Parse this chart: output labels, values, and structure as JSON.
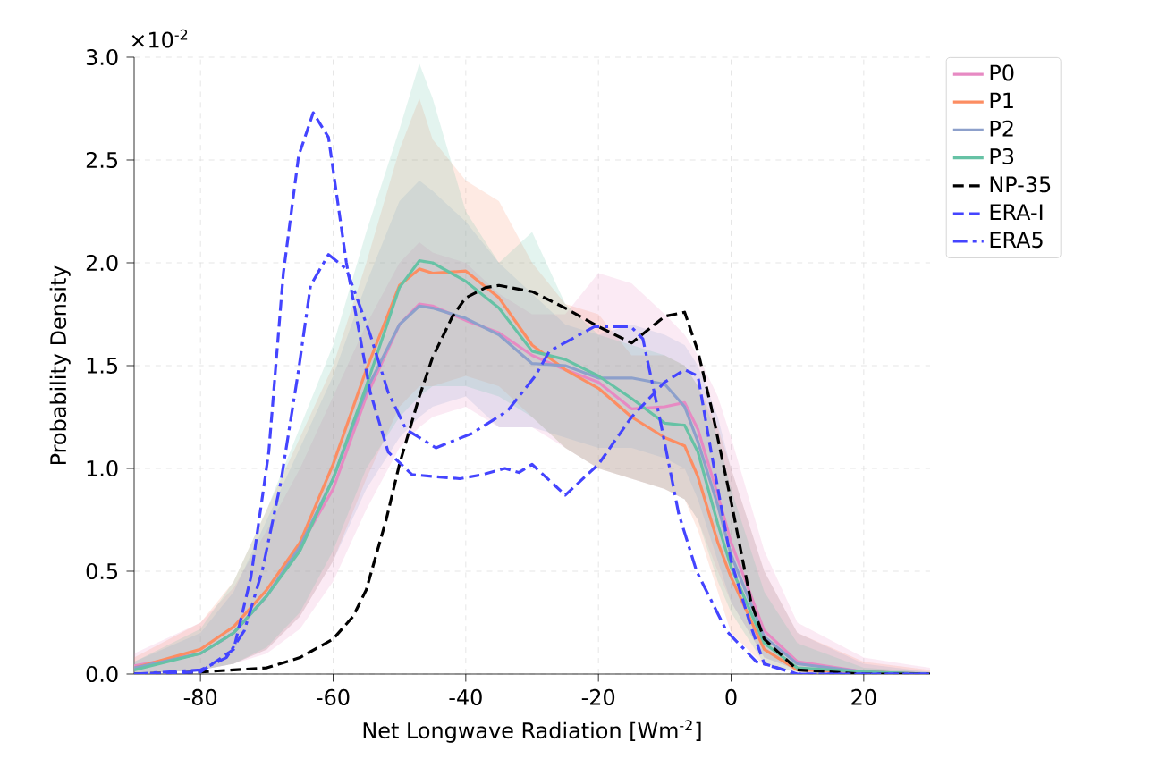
{
  "chart_data": {
    "type": "line",
    "xlabel": "Net Longwave Radiation [Wm$^{-2}$]",
    "ylabel": "Probability Density",
    "annotations": [
      "×10$^{-2}$"
    ],
    "xlim": [
      -90,
      30
    ],
    "ylim": [
      0,
      3.0
    ],
    "xticks": [
      -80,
      -60,
      -40,
      -20,
      0,
      20
    ],
    "yticks": [
      {
        "value": 0,
        "label": "0.0"
      },
      {
        "value": 0.5,
        "label": "0.5"
      },
      {
        "value": 1.0,
        "label": "1.0"
      },
      {
        "value": 1.5,
        "label": "1.5"
      },
      {
        "value": 2.0,
        "label": "2.0"
      },
      {
        "value": 2.5,
        "label": "2.5"
      },
      {
        "value": 3.0,
        "label": "3.0"
      }
    ],
    "grid": true,
    "legend": "top right",
    "series": [
      {
        "name": "P0",
        "color": "#e78ac3",
        "line_style": "solid",
        "x": [
          -90,
          -80,
          -75,
          -70,
          -65,
          -60,
          -55,
          -50,
          -47,
          -45,
          -40,
          -35,
          -30,
          -25,
          -20,
          -15,
          -10,
          -7,
          -5,
          -2,
          0,
          5,
          10,
          20,
          30
        ],
        "values": [
          0.04,
          0.1,
          0.2,
          0.38,
          0.62,
          0.9,
          1.35,
          1.7,
          1.8,
          1.79,
          1.72,
          1.66,
          1.55,
          1.48,
          1.42,
          1.29,
          1.3,
          1.32,
          1.19,
          0.87,
          0.64,
          0.21,
          0.06,
          0.01,
          0
        ],
        "upper": [
          0.1,
          0.25,
          0.42,
          0.7,
          1.0,
          1.35,
          1.7,
          2.0,
          2.1,
          2.05,
          2.0,
          1.85,
          1.75,
          1.75,
          1.95,
          1.9,
          1.75,
          1.65,
          1.55,
          1.35,
          1.15,
          0.6,
          0.25,
          0.08,
          0.03
        ],
        "lower": [
          0,
          0.02,
          0.05,
          0.1,
          0.22,
          0.45,
          0.8,
          1.1,
          1.2,
          1.25,
          1.3,
          1.2,
          1.2,
          1.1,
          1.0,
          0.95,
          0.9,
          0.85,
          0.75,
          0.5,
          0.35,
          0.08,
          0.02,
          0,
          0
        ]
      },
      {
        "name": "P1",
        "color": "#fc8d62",
        "line_style": "solid",
        "x": [
          -90,
          -80,
          -75,
          -70,
          -65,
          -60,
          -55,
          -50,
          -47,
          -45,
          -40,
          -35,
          -30,
          -25,
          -20,
          -15,
          -10,
          -7,
          -5,
          -2,
          0,
          5,
          10,
          20,
          30
        ],
        "values": [
          0.03,
          0.12,
          0.23,
          0.41,
          0.64,
          1.02,
          1.48,
          1.89,
          1.97,
          1.95,
          1.96,
          1.83,
          1.6,
          1.48,
          1.39,
          1.25,
          1.15,
          1.11,
          0.96,
          0.64,
          0.47,
          0.12,
          0.02,
          0.01,
          0
        ],
        "upper": [
          0.08,
          0.25,
          0.45,
          0.8,
          1.15,
          1.5,
          2.0,
          2.55,
          2.8,
          2.6,
          2.4,
          2.3,
          2.0,
          1.8,
          1.75,
          1.55,
          1.55,
          1.5,
          1.4,
          1.2,
          1.0,
          0.5,
          0.2,
          0.06,
          0.02
        ],
        "lower": [
          0,
          0.02,
          0.05,
          0.12,
          0.28,
          0.55,
          0.95,
          1.3,
          1.4,
          1.4,
          1.45,
          1.4,
          1.25,
          1.1,
          1.0,
          0.95,
          0.9,
          0.85,
          0.7,
          0.4,
          0.2,
          0.04,
          0.01,
          0,
          0
        ]
      },
      {
        "name": "P2",
        "color": "#8da0cb",
        "line_style": "solid",
        "x": [
          -90,
          -80,
          -75,
          -70,
          -65,
          -60,
          -55,
          -50,
          -47,
          -45,
          -40,
          -35,
          -30,
          -25,
          -20,
          -15,
          -10,
          -7,
          -5,
          -2,
          0,
          5,
          10,
          20,
          30
        ],
        "values": [
          0.03,
          0.1,
          0.2,
          0.38,
          0.62,
          0.95,
          1.38,
          1.7,
          1.79,
          1.78,
          1.73,
          1.65,
          1.51,
          1.5,
          1.44,
          1.44,
          1.41,
          1.3,
          1.13,
          0.82,
          0.58,
          0.18,
          0.05,
          0.01,
          0
        ],
        "upper": [
          0.06,
          0.2,
          0.4,
          0.75,
          1.1,
          1.45,
          1.9,
          2.3,
          2.4,
          2.35,
          2.2,
          2.0,
          1.85,
          1.7,
          1.65,
          1.7,
          1.65,
          1.6,
          1.5,
          1.25,
          1.0,
          0.5,
          0.2,
          0.05,
          0.01
        ],
        "lower": [
          0,
          0.02,
          0.05,
          0.12,
          0.28,
          0.55,
          0.9,
          1.15,
          1.25,
          1.3,
          1.35,
          1.2,
          1.2,
          1.15,
          1.1,
          1.1,
          1.05,
          1.0,
          0.85,
          0.55,
          0.35,
          0.08,
          0.02,
          0,
          0
        ]
      },
      {
        "name": "P3",
        "color": "#66c2a5",
        "line_style": "solid",
        "x": [
          -90,
          -80,
          -75,
          -70,
          -65,
          -60,
          -55,
          -50,
          -47,
          -45,
          -40,
          -35,
          -30,
          -25,
          -20,
          -15,
          -10,
          -7,
          -5,
          -2,
          0,
          5,
          10,
          20,
          30
        ],
        "values": [
          0.02,
          0.1,
          0.2,
          0.38,
          0.6,
          0.95,
          1.4,
          1.88,
          2.01,
          2.0,
          1.91,
          1.78,
          1.57,
          1.53,
          1.45,
          1.34,
          1.22,
          1.21,
          1.08,
          0.73,
          0.52,
          0.15,
          0.03,
          0.01,
          0
        ],
        "upper": [
          0.06,
          0.22,
          0.45,
          0.8,
          1.2,
          1.6,
          2.15,
          2.65,
          2.97,
          2.8,
          2.25,
          2.0,
          2.15,
          1.8,
          1.65,
          1.6,
          1.55,
          1.5,
          1.4,
          1.15,
          0.9,
          0.4,
          0.15,
          0.03,
          0.01
        ],
        "lower": [
          0,
          0.02,
          0.05,
          0.13,
          0.3,
          0.6,
          1.0,
          1.25,
          1.35,
          1.4,
          1.4,
          1.35,
          1.25,
          1.1,
          1.0,
          0.95,
          0.9,
          0.85,
          0.75,
          0.45,
          0.3,
          0.05,
          0.01,
          0,
          0
        ]
      },
      {
        "name": "NP-35",
        "color": "#000000",
        "line_style": "dashed",
        "x": [
          -90,
          -80,
          -75,
          -70,
          -65,
          -60,
          -57,
          -55,
          -52,
          -50,
          -47,
          -45,
          -42,
          -40,
          -37,
          -35,
          -30,
          -25,
          -20,
          -15,
          -10,
          -7,
          -5,
          -3,
          0,
          3,
          5,
          10,
          20,
          30
        ],
        "values": [
          0,
          0.01,
          0.02,
          0.03,
          0.08,
          0.17,
          0.28,
          0.41,
          0.75,
          1.02,
          1.35,
          1.54,
          1.74,
          1.83,
          1.88,
          1.89,
          1.86,
          1.78,
          1.69,
          1.61,
          1.74,
          1.76,
          1.57,
          1.3,
          0.84,
          0.35,
          0.17,
          0.02,
          0,
          0
        ]
      },
      {
        "name": "ERA-I",
        "color": "#4444ff",
        "line_style": "dashed",
        "x": [
          -90,
          -80,
          -75,
          -72.4,
          -69.7,
          -67.5,
          -65.2,
          -63,
          -60.7,
          -58,
          -54.4,
          -51.7,
          -48.1,
          -40.9,
          -37.5,
          -34.1,
          -32,
          -30,
          -25,
          -20,
          -15,
          -10,
          -7,
          -5,
          -3,
          0,
          3,
          5,
          10,
          20,
          30
        ],
        "values": [
          0,
          0.01,
          0.12,
          0.47,
          1.08,
          1.95,
          2.52,
          2.73,
          2.61,
          2.0,
          1.37,
          1.08,
          0.97,
          0.95,
          0.97,
          1.0,
          0.98,
          1.02,
          0.87,
          1.02,
          1.25,
          1.42,
          1.48,
          1.45,
          1.08,
          0.55,
          0.23,
          0.05,
          0,
          0,
          0
        ]
      },
      {
        "name": "ERA5",
        "color": "#4444ff",
        "line_style": "dashdot",
        "x": [
          -90,
          -80,
          -76.1,
          -73.4,
          -70.7,
          -67.9,
          -65.2,
          -63.4,
          -60.7,
          -58,
          -54.4,
          -51.7,
          -49,
          -44.5,
          -39.1,
          -33.7,
          -29.5,
          -27.4,
          -20.6,
          -15.1,
          -13.3,
          -10.6,
          -7.9,
          -5.2,
          -0.7,
          3.8,
          10,
          20,
          30
        ],
        "values": [
          0,
          0.02,
          0.08,
          0.21,
          0.5,
          0.93,
          1.48,
          1.89,
          2.04,
          1.97,
          1.65,
          1.37,
          1.19,
          1.1,
          1.17,
          1.28,
          1.45,
          1.57,
          1.69,
          1.69,
          1.63,
          1.22,
          0.78,
          0.5,
          0.21,
          0.06,
          0,
          0,
          0
        ]
      }
    ]
  }
}
